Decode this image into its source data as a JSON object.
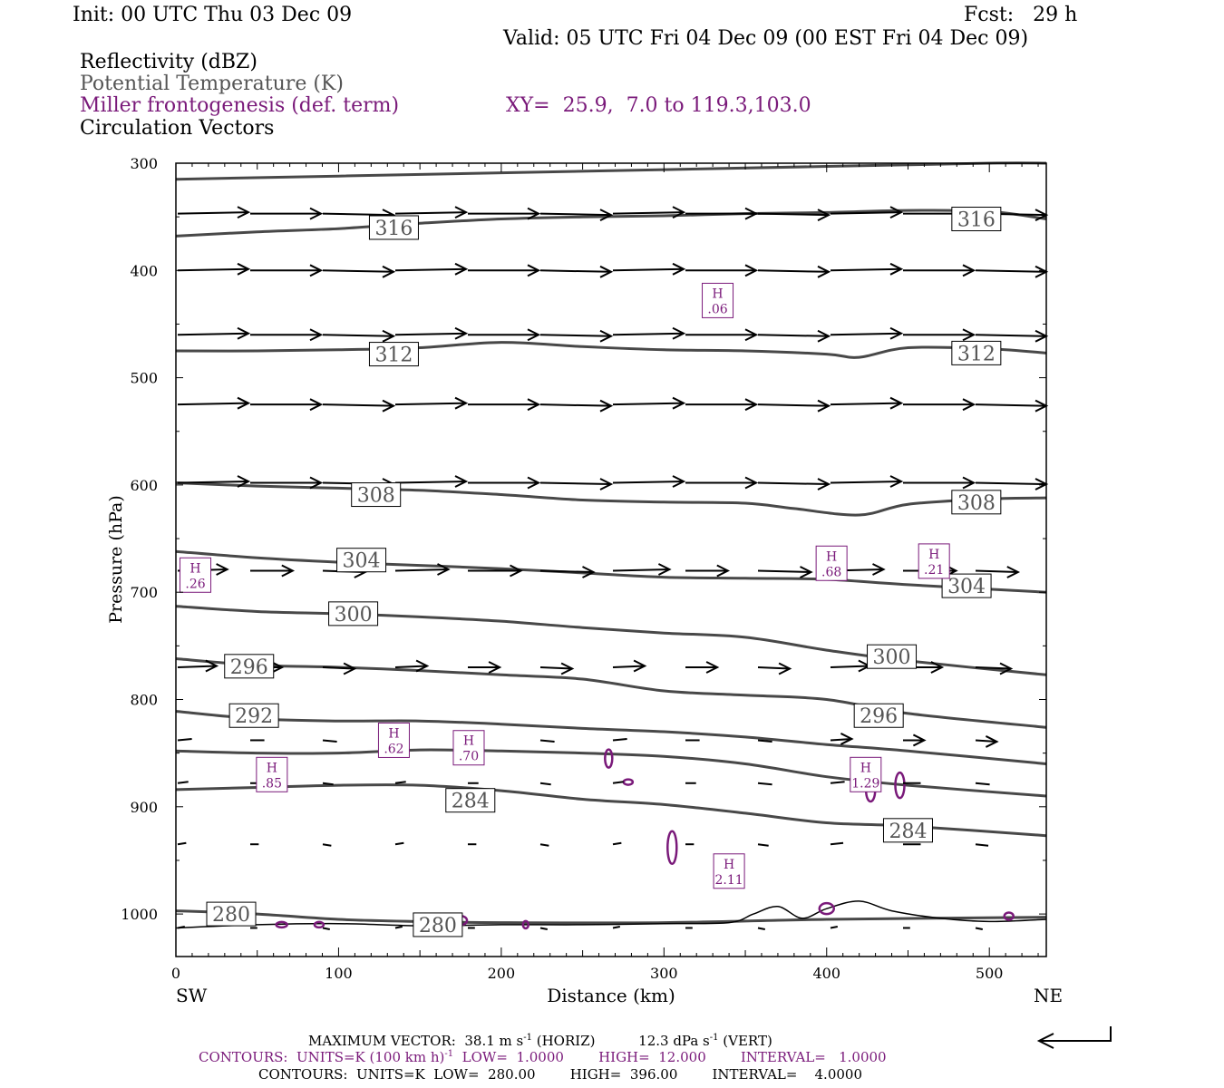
{
  "header": {
    "init": "Init: 00 UTC Thu 03 Dec 09",
    "fcst": "Fcst:   29 h",
    "valid": "Valid: 05 UTC Fri 04 Dec 09 (00 EST Fri 04 Dec 09)"
  },
  "legend": {
    "reflectivity": "Reflectivity (dBZ)",
    "theta": "Potential Temperature (K)",
    "frontogenesis": "Miller frontogenesis (def. term)",
    "xy": "XY=  25.9,  7.0 to 119.3,103.0",
    "vectors": "Circulation Vectors"
  },
  "colors": {
    "theta": "#484848",
    "fronto": "#7a1a7a",
    "vector": "#000000"
  },
  "footer": {
    "max_vector_prefix": "MAXIMUM VECTOR:  38.1 m s",
    "max_vector_sup1": "-1",
    "max_vector_mid": " (HORIZ)          12.3 dPa s",
    "max_vector_sup2": "-1",
    "max_vector_suffix": " (VERT)",
    "contours1_prefix": "CONTOURS:  UNITS=K (100 km h)",
    "contours1_sup": "-1",
    "contours1_suffix": "  LOW=  1.0000        HIGH=  12.000        INTERVAL=   1.0000",
    "contours2": "CONTOURS:  UNITS=K  LOW=  280.00        HIGH=  396.00        INTERVAL=    4.0000"
  },
  "chart_data": {
    "type": "line",
    "xlabel": "Distance (km)",
    "ylabel": "Pressure (hPa)",
    "x_left_label": "SW",
    "x_right_label": "NE",
    "xlim": [
      0,
      535
    ],
    "ylim": [
      1040,
      300
    ],
    "x_ticks": [
      0,
      100,
      200,
      300,
      400,
      500
    ],
    "y_ticks": [
      300,
      400,
      500,
      600,
      700,
      800,
      900,
      1000
    ],
    "theta_contours": [
      {
        "value": 280,
        "points": [
          [
            0,
            997
          ],
          [
            50,
            1000
          ],
          [
            100,
            1005
          ],
          [
            150,
            1007
          ],
          [
            200,
            1008
          ],
          [
            300,
            1008
          ],
          [
            400,
            1005
          ],
          [
            535,
            1003
          ]
        ]
      },
      {
        "value": 284,
        "points": [
          [
            0,
            884
          ],
          [
            50,
            882
          ],
          [
            100,
            880
          ],
          [
            150,
            880
          ],
          [
            200,
            885
          ],
          [
            250,
            893
          ],
          [
            300,
            898
          ],
          [
            350,
            906
          ],
          [
            400,
            915
          ],
          [
            450,
            918
          ],
          [
            535,
            927
          ]
        ]
      },
      {
        "value": 288,
        "points": [
          [
            0,
            848
          ],
          [
            50,
            850
          ],
          [
            100,
            850
          ],
          [
            150,
            847
          ],
          [
            200,
            848
          ],
          [
            250,
            850
          ],
          [
            300,
            853
          ],
          [
            350,
            860
          ],
          [
            400,
            872
          ],
          [
            450,
            880
          ],
          [
            535,
            890
          ]
        ]
      },
      {
        "value": 292,
        "points": [
          [
            0,
            811
          ],
          [
            50,
            818
          ],
          [
            100,
            820
          ],
          [
            150,
            820
          ],
          [
            200,
            823
          ],
          [
            250,
            827
          ],
          [
            300,
            830
          ],
          [
            350,
            835
          ],
          [
            400,
            842
          ],
          [
            450,
            848
          ],
          [
            535,
            860
          ]
        ]
      },
      {
        "value": 296,
        "points": [
          [
            0,
            762
          ],
          [
            50,
            768
          ],
          [
            100,
            770
          ],
          [
            150,
            773
          ],
          [
            200,
            777
          ],
          [
            250,
            781
          ],
          [
            300,
            792
          ],
          [
            350,
            796
          ],
          [
            400,
            800
          ],
          [
            450,
            813
          ],
          [
            535,
            826
          ]
        ]
      },
      {
        "value": 300,
        "points": [
          [
            0,
            713
          ],
          [
            50,
            718
          ],
          [
            100,
            720
          ],
          [
            150,
            723
          ],
          [
            200,
            727
          ],
          [
            250,
            733
          ],
          [
            300,
            738
          ],
          [
            350,
            742
          ],
          [
            400,
            754
          ],
          [
            450,
            764
          ],
          [
            535,
            777
          ]
        ]
      },
      {
        "value": 304,
        "points": [
          [
            0,
            662
          ],
          [
            50,
            668
          ],
          [
            100,
            672
          ],
          [
            150,
            675
          ],
          [
            200,
            678
          ],
          [
            250,
            682
          ],
          [
            300,
            686
          ],
          [
            350,
            687
          ],
          [
            400,
            688
          ],
          [
            450,
            693
          ],
          [
            535,
            700
          ]
        ]
      },
      {
        "value": 308,
        "points": [
          [
            0,
            598
          ],
          [
            50,
            601
          ],
          [
            100,
            603
          ],
          [
            150,
            605
          ],
          [
            200,
            609
          ],
          [
            250,
            614
          ],
          [
            300,
            616
          ],
          [
            350,
            617
          ],
          [
            380,
            622
          ],
          [
            420,
            628
          ],
          [
            450,
            618
          ],
          [
            500,
            613
          ],
          [
            535,
            612
          ]
        ]
      },
      {
        "value": 312,
        "points": [
          [
            0,
            475
          ],
          [
            50,
            475
          ],
          [
            100,
            474
          ],
          [
            150,
            472
          ],
          [
            200,
            467
          ],
          [
            250,
            471
          ],
          [
            300,
            474
          ],
          [
            350,
            475
          ],
          [
            400,
            478
          ],
          [
            420,
            481
          ],
          [
            450,
            472
          ],
          [
            500,
            473
          ],
          [
            535,
            477
          ]
        ]
      },
      {
        "value": 316,
        "points": [
          [
            0,
            368
          ],
          [
            50,
            364
          ],
          [
            100,
            361
          ],
          [
            150,
            356
          ],
          [
            200,
            352
          ],
          [
            250,
            350
          ],
          [
            300,
            349
          ],
          [
            350,
            347
          ],
          [
            400,
            346
          ],
          [
            450,
            344
          ],
          [
            500,
            345
          ],
          [
            535,
            352
          ]
        ]
      },
      {
        "value": 320,
        "points": [
          [
            0,
            315
          ],
          [
            100,
            312
          ],
          [
            200,
            309
          ],
          [
            300,
            306
          ],
          [
            400,
            303
          ],
          [
            500,
            300
          ],
          [
            535,
            300
          ]
        ]
      }
    ],
    "theta_labels": [
      {
        "text": "316",
        "x": 134,
        "p": 360
      },
      {
        "text": "316",
        "x": 492,
        "p": 352
      },
      {
        "text": "312",
        "x": 134,
        "p": 478
      },
      {
        "text": "312",
        "x": 492,
        "p": 477
      },
      {
        "text": "308",
        "x": 123,
        "p": 609
      },
      {
        "text": "308",
        "x": 492,
        "p": 616
      },
      {
        "text": "304",
        "x": 114,
        "p": 670
      },
      {
        "text": "304",
        "x": 486,
        "p": 694
      },
      {
        "text": "300",
        "x": 109,
        "p": 720
      },
      {
        "text": "300",
        "x": 440,
        "p": 760
      },
      {
        "text": "296",
        "x": 45,
        "p": 769
      },
      {
        "text": "296",
        "x": 432,
        "p": 815
      },
      {
        "text": "292",
        "x": 48,
        "p": 815
      },
      {
        "text": "284",
        "x": 181,
        "p": 894
      },
      {
        "text": "284",
        "x": 450,
        "p": 922
      },
      {
        "text": "280",
        "x": 34,
        "p": 1000
      },
      {
        "text": "280",
        "x": 161,
        "p": 1010
      }
    ],
    "fronto_maxima": [
      {
        "letter": "H",
        "value": ".06",
        "x": 333,
        "p": 428
      },
      {
        "letter": "H",
        "value": ".26",
        "x": 12,
        "p": 684
      },
      {
        "letter": "H",
        "value": ".68",
        "x": 403,
        "p": 673
      },
      {
        "letter": "H",
        "value": ".21",
        "x": 466,
        "p": 671
      },
      {
        "letter": "H",
        "value": ".85",
        "x": 59,
        "p": 870
      },
      {
        "letter": "H",
        "value": ".62",
        "x": 134,
        "p": 838
      },
      {
        "letter": "H",
        "value": ".70",
        "x": 180,
        "p": 845
      },
      {
        "letter": "H",
        "value": "1.29",
        "x": 424,
        "p": 870
      },
      {
        "letter": "H",
        "value": "2.11",
        "x": 340,
        "p": 960
      }
    ],
    "terrain": [
      [
        0,
        1013
      ],
      [
        50,
        1010
      ],
      [
        100,
        1009
      ],
      [
        150,
        1011
      ],
      [
        200,
        1010
      ],
      [
        250,
        1010
      ],
      [
        300,
        1009
      ],
      [
        340,
        1008
      ],
      [
        355,
        1000
      ],
      [
        370,
        993
      ],
      [
        385,
        1004
      ],
      [
        400,
        995
      ],
      [
        420,
        988
      ],
      [
        440,
        997
      ],
      [
        470,
        1004
      ],
      [
        500,
        1007
      ],
      [
        535,
        1005
      ]
    ],
    "vector_rows": [
      {
        "p": 347,
        "y_offset": [
          0,
          0,
          0,
          0,
          0,
          0,
          0,
          0,
          0,
          0,
          0,
          0
        ],
        "u": [
          1,
          1,
          1,
          1,
          1,
          1,
          1,
          1,
          1,
          1,
          1,
          1
        ]
      },
      {
        "p": 400,
        "u": [
          1,
          1,
          1,
          1,
          1,
          1,
          1,
          1,
          1,
          1,
          1,
          1
        ]
      },
      {
        "p": 460,
        "u": [
          1,
          1,
          1,
          1,
          1,
          1,
          1,
          1,
          1,
          1,
          1,
          1
        ]
      },
      {
        "p": 525,
        "u": [
          1,
          1,
          1,
          1,
          1,
          1,
          1,
          1,
          1,
          1,
          1,
          1
        ]
      },
      {
        "p": 598,
        "u": [
          1,
          1,
          1,
          1,
          1,
          1,
          1,
          1,
          1,
          1,
          1,
          1
        ]
      },
      {
        "p": 680,
        "u": [
          0.7,
          0.6,
          0.6,
          0.75,
          0.75,
          0.75,
          0.8,
          0.6,
          0.75,
          0.75,
          0.75,
          0.6
        ]
      },
      {
        "p": 770,
        "u": [
          0.55,
          0.45,
          0.45,
          0.45,
          0.45,
          0.45,
          0.45,
          0.45,
          0.45,
          0.55,
          0.55,
          0.5
        ]
      },
      {
        "p": 838,
        "u": [
          0.2,
          0.2,
          0.2,
          0.2,
          0.2,
          0.2,
          0.2,
          0.2,
          0.2,
          0.3,
          0.3,
          0.3
        ]
      },
      {
        "p": 878,
        "u": [
          0.15,
          0.15,
          0.15,
          0.15,
          0.15,
          0.15,
          0.15,
          0.15,
          0.2,
          0.2,
          0.25,
          0.2
        ]
      },
      {
        "p": 935,
        "u": [
          0.12,
          0.12,
          0.12,
          0.12,
          0.12,
          0.12,
          0.12,
          0.12,
          0.15,
          0.18,
          0.25,
          0.18
        ]
      },
      {
        "p": 1013,
        "u": [
          0.1,
          0.1,
          0.1,
          0.1,
          0.1,
          0.1,
          0.1,
          0.1,
          0.1,
          0.1,
          0.1,
          0.1
        ]
      }
    ]
  }
}
